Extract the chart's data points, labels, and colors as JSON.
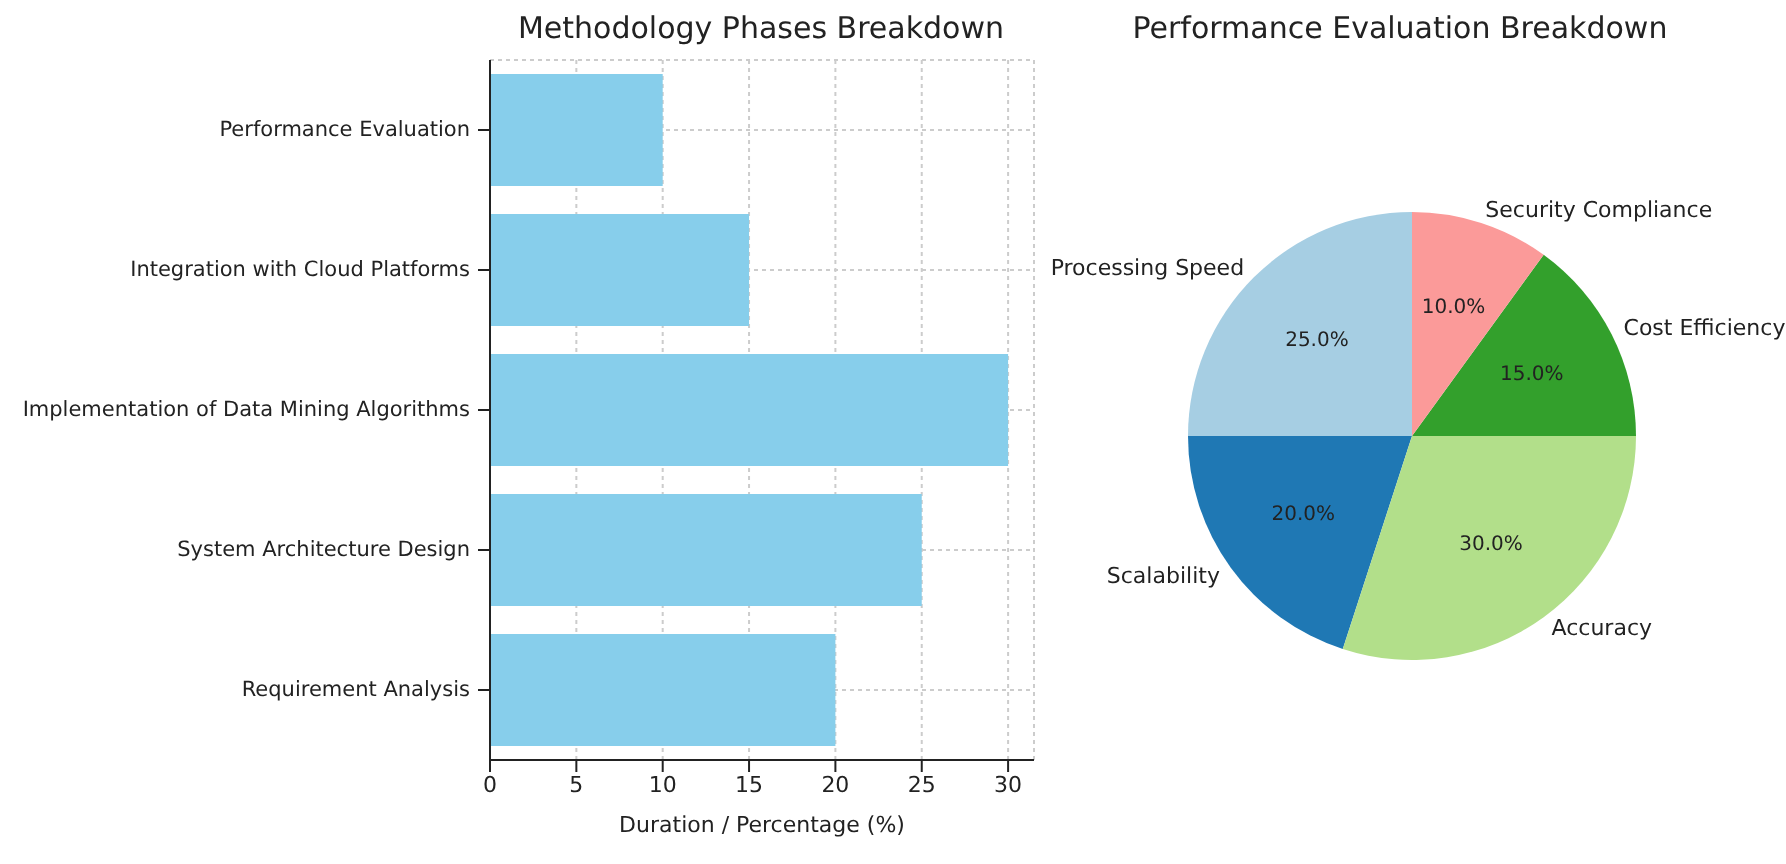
{
  "chart_data": [
    {
      "type": "bar",
      "title": "Methodology Phases Breakdown",
      "orientation": "horizontal",
      "xlabel": "Duration / Percentage (%)",
      "categories": [
        "Performance Evaluation",
        "Integration with Cloud Platforms",
        "Implementation of Data Mining Algorithms",
        "System Architecture Design",
        "Requirement Analysis"
      ],
      "values": [
        10,
        15,
        30,
        25,
        20
      ],
      "color": "#87ceeb",
      "xlim": [
        0,
        31.5
      ],
      "xticks": [
        0,
        5,
        10,
        15,
        20,
        25,
        30
      ],
      "grid": true
    },
    {
      "type": "pie",
      "title": "Performance Evaluation Breakdown",
      "categories": [
        "Processing Speed",
        "Scalability",
        "Accuracy",
        "Cost Efficiency",
        "Security Compliance"
      ],
      "values": [
        25,
        20,
        30,
        15,
        10
      ],
      "colors": [
        "#a6cee3",
        "#1f78b4",
        "#b2df8a",
        "#33a02c",
        "#fb9a99"
      ],
      "value_labels": [
        "25.0%",
        "20.0%",
        "30.0%",
        "15.0%",
        "10.0%"
      ]
    }
  ]
}
